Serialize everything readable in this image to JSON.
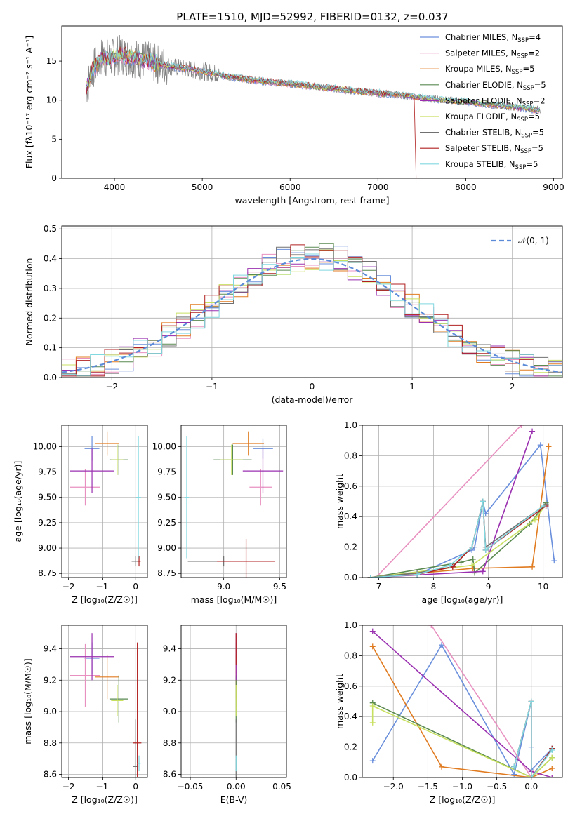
{
  "figure": {
    "title": "PLATE=1510, MJD=52992, FIBERID=0132, z=0.037"
  },
  "colors": {
    "series": [
      "#6a8fdc",
      "#e890c0",
      "#e07b20",
      "#5a8a50",
      "#9a30b0",
      "#c8e060",
      "#707070",
      "#b02020",
      "#80d8e0"
    ],
    "data_spectrum": "#808080",
    "normal_curve": "#5b8bd8",
    "grid": "#b0b0b0"
  },
  "series_names": [
    "Chabrier MILES",
    "Salpeter MILES",
    "Kroupa MILES",
    "Chabrier ELODIE",
    "Salpeter ELODIE",
    "Kroupa ELODIE",
    "Chabrier STELIB",
    "Salpeter STELIB",
    "Kroupa STELIB"
  ],
  "legend_nssp": [
    "4",
    "2",
    "5",
    "5",
    "2",
    "5",
    "5",
    "5",
    "5"
  ],
  "chart_data": [
    {
      "id": "spectrum",
      "type": "line",
      "title": "PLATE=1510, MJD=52992, FIBERID=0132, z=0.037",
      "xlabel": "wavelength [Angstrom, rest frame]",
      "ylabel": "Flux [fλ10⁻¹⁷ erg cm⁻² s⁻¹ A⁻¹]",
      "xlim": [
        3400,
        9100
      ],
      "ylim": [
        0,
        19.5
      ],
      "xticks": [
        4000,
        5000,
        6000,
        7000,
        8000,
        9000
      ],
      "yticks": [
        0,
        5,
        10,
        15
      ],
      "grid": false,
      "legend_position": "top-right",
      "continuum": {
        "wavelength": [
          3680,
          3750,
          3850,
          3950,
          4050,
          4150,
          4300,
          4500,
          4700,
          4900,
          5100,
          5300,
          5500,
          5700,
          5900,
          6100,
          6300,
          6500,
          6700,
          6900,
          7100,
          7300,
          7500,
          7700,
          7900,
          8100,
          8300,
          8500,
          8700,
          8850
        ],
        "flux": [
          11.5,
          13.8,
          15.5,
          15.3,
          15.8,
          15.6,
          15.2,
          14.6,
          14.2,
          13.9,
          13.5,
          13.0,
          12.7,
          12.4,
          12.2,
          12.0,
          11.7,
          11.5,
          11.2,
          11.0,
          10.8,
          10.6,
          10.3,
          10.1,
          9.9,
          9.7,
          9.4,
          9.2,
          8.9,
          8.7
        ]
      },
      "model_end_wavelength": [
        8850,
        8850,
        8850,
        8850,
        8850,
        8850,
        8850,
        7420,
        8850
      ]
    },
    {
      "id": "residual-histogram",
      "type": "histogram",
      "xlabel": "(data-model)/error",
      "ylabel": "Normed distribution",
      "xlim": [
        -2.5,
        2.5
      ],
      "ylim": [
        0,
        0.51
      ],
      "xticks": [
        -2,
        -1,
        0,
        1,
        2
      ],
      "yticks": [
        0.0,
        0.1,
        0.2,
        0.3,
        0.4,
        0.5
      ],
      "grid": true,
      "legend_position": "top-right",
      "reference_curve": {
        "name": "𝒩(0, 1)",
        "mean": 0,
        "sigma": 1
      }
    },
    {
      "id": "age-vs-z",
      "type": "scatter",
      "xlabel": "Z [log₁₀(Z/Z☉)]",
      "ylabel": "age  [log₁₀(age/yr)]",
      "xlim": [
        -2.2,
        0.35
      ],
      "ylim": [
        8.71,
        10.21
      ],
      "xticks": [
        -2,
        -1,
        0
      ],
      "yticks": [
        8.75,
        9.0,
        9.25,
        9.5,
        9.75,
        10.0
      ],
      "grid": true,
      "points": [
        {
          "x": -1.3,
          "y": 9.98,
          "ex": 0.22,
          "ey": 0.12
        },
        {
          "x": -1.5,
          "y": 9.6,
          "ex": 0.45,
          "ey": 0.18
        },
        {
          "x": -0.85,
          "y": 10.03,
          "ex": 0.35,
          "ey": 0.12
        },
        {
          "x": -0.5,
          "y": 9.87,
          "ex": 0.28,
          "ey": 0.15
        },
        {
          "x": -1.3,
          "y": 9.76,
          "ex": 0.65,
          "ey": 0.22
        },
        {
          "x": -0.55,
          "y": 9.87,
          "ex": 0.18,
          "ey": 0.15
        },
        {
          "x": 0.0,
          "y": 8.87,
          "ex": 0.12,
          "ey": 0.05
        },
        {
          "x": 0.1,
          "y": 8.87,
          "ex": 0.05,
          "ey": 0.05
        },
        {
          "x": 0.08,
          "y": 9.5,
          "ex": 0.08,
          "ey": 0.6
        }
      ]
    },
    {
      "id": "age-vs-mass",
      "type": "scatter",
      "xlabel": "mass [log₁₀(M/M☉)]",
      "ylabel": "",
      "xlim": [
        8.62,
        9.56
      ],
      "ylim": [
        8.71,
        10.21
      ],
      "xticks": [
        9.0,
        9.5
      ],
      "yticks": [
        8.75,
        9.0,
        9.25,
        9.5,
        9.75,
        10.0
      ],
      "grid": true,
      "points": [
        {
          "x": 9.35,
          "y": 9.98,
          "ex": 0.09,
          "ey": 0.1
        },
        {
          "x": 9.33,
          "y": 9.6,
          "ex": 0.1,
          "ey": 0.18
        },
        {
          "x": 9.22,
          "y": 10.03,
          "ex": 0.14,
          "ey": 0.12
        },
        {
          "x": 9.08,
          "y": 9.87,
          "ex": 0.17,
          "ey": 0.15
        },
        {
          "x": 9.35,
          "y": 9.76,
          "ex": 0.18,
          "ey": 0.22
        },
        {
          "x": 9.07,
          "y": 9.87,
          "ex": 0.1,
          "ey": 0.15
        },
        {
          "x": 9.0,
          "y": 8.87,
          "ex": 0.32,
          "ey": 0.05
        },
        {
          "x": 9.2,
          "y": 8.87,
          "ex": 0.26,
          "ey": 0.22
        },
        {
          "x": 8.67,
          "y": 9.5,
          "ex": 0.02,
          "ey": 0.6
        }
      ]
    },
    {
      "id": "weight-vs-age",
      "type": "line",
      "xlabel": "age  [log₁₀(age/yr)]",
      "ylabel": "mass weight",
      "xlim": [
        6.7,
        10.35
      ],
      "ylim": [
        0,
        1.0
      ],
      "xticks": [
        7,
        8,
        9,
        10
      ],
      "yticks": [
        0.0,
        0.2,
        0.4,
        0.6,
        0.8,
        1.0
      ],
      "grid": true,
      "series": [
        {
          "x": [
            6.85,
            7.7,
            8.7,
            8.75,
            8.9,
            8.95,
            9.95,
            10.2
          ],
          "y": [
            0.0,
            0.02,
            0.18,
            0.2,
            0.5,
            0.42,
            0.87,
            0.11
          ]
        },
        {
          "x": [
            6.95,
            9.6
          ],
          "y": [
            0.0,
            1.0
          ]
        },
        {
          "x": [
            6.85,
            8.72,
            9.8,
            10.1
          ],
          "y": [
            0.0,
            0.06,
            0.07,
            0.86
          ]
        },
        {
          "x": [
            6.85,
            8.5,
            8.72,
            8.75,
            9.75,
            10.05
          ],
          "y": [
            0.0,
            0.1,
            0.12,
            0.03,
            0.35,
            0.49
          ]
        },
        {
          "x": [
            6.85,
            8.9,
            9.8
          ],
          "y": [
            0.0,
            0.04,
            0.96
          ]
        },
        {
          "x": [
            6.85,
            8.7,
            9.85,
            10.05
          ],
          "y": [
            0.0,
            0.08,
            0.38,
            0.48
          ]
        },
        {
          "x": [
            6.85,
            7.7,
            8.35,
            8.7,
            8.9,
            8.95,
            10.05
          ],
          "y": [
            0.0,
            0.03,
            0.07,
            0.2,
            0.5,
            0.2,
            0.48
          ]
        },
        {
          "x": [
            6.85,
            7.7,
            8.35,
            8.7,
            8.9,
            8.95,
            10.05
          ],
          "y": [
            0.0,
            0.02,
            0.07,
            0.2,
            0.5,
            0.18,
            0.47
          ]
        },
        {
          "x": [
            6.85,
            7.7,
            8.3,
            8.7,
            8.9,
            8.95,
            10.0
          ],
          "y": [
            0.0,
            0.02,
            0.08,
            0.2,
            0.5,
            0.18,
            0.47
          ]
        }
      ]
    },
    {
      "id": "mass-vs-z",
      "type": "scatter",
      "xlabel": "Z [log₁₀(Z/Z☉)]",
      "ylabel": "mass [log₁₀(M/M☉)]",
      "xlim": [
        -2.2,
        0.35
      ],
      "ylim": [
        8.58,
        9.55
      ],
      "xticks": [
        -2,
        -1,
        0
      ],
      "yticks": [
        8.6,
        8.8,
        9.0,
        9.2,
        9.4
      ],
      "grid": true,
      "points": [
        {
          "x": -1.3,
          "y": 9.34,
          "ex": 0.22,
          "ey": 0.1
        },
        {
          "x": -1.5,
          "y": 9.23,
          "ex": 0.45,
          "ey": 0.2
        },
        {
          "x": -0.85,
          "y": 9.22,
          "ex": 0.35,
          "ey": 0.14
        },
        {
          "x": -0.5,
          "y": 9.08,
          "ex": 0.28,
          "ey": 0.15
        },
        {
          "x": -1.3,
          "y": 9.35,
          "ex": 0.65,
          "ey": 0.15
        },
        {
          "x": -0.55,
          "y": 9.07,
          "ex": 0.18,
          "ey": 0.1
        },
        {
          "x": 0.0,
          "y": 8.65,
          "ex": 0.08,
          "ey": 0.3
        },
        {
          "x": 0.05,
          "y": 8.8,
          "ex": 0.12,
          "ey": 0.64
        },
        {
          "x": 0.1,
          "y": 8.67,
          "ex": 0.05,
          "ey": 0.05
        }
      ]
    },
    {
      "id": "mass-vs-ebv",
      "type": "scatter",
      "xlabel": "E(B-V)",
      "ylabel": "",
      "xlim": [
        -0.06,
        0.055
      ],
      "ylim": [
        8.58,
        9.55
      ],
      "xticks": [
        -0.05,
        0.0,
        0.05
      ],
      "yticks": [
        8.6,
        8.8,
        9.0,
        9.2,
        9.4
      ],
      "grid": true,
      "points": [
        {
          "x": 0.0,
          "y": 9.34,
          "ex": 0.0,
          "ey": 0.1
        },
        {
          "x": 0.0,
          "y": 9.23,
          "ex": 0.0,
          "ey": 0.2
        },
        {
          "x": 0.0,
          "y": 9.22,
          "ex": 0.0,
          "ey": 0.14
        },
        {
          "x": 0.0,
          "y": 9.08,
          "ex": 0.0,
          "ey": 0.15
        },
        {
          "x": 0.0,
          "y": 9.35,
          "ex": 0.0,
          "ey": 0.15
        },
        {
          "x": 0.0,
          "y": 9.07,
          "ex": 0.0,
          "ey": 0.1
        },
        {
          "x": 0.0,
          "y": 8.65,
          "ex": 0.0,
          "ey": 0.3
        },
        {
          "x": 0.0,
          "y": 9.4,
          "ex": 0.0,
          "ey": 0.1
        },
        {
          "x": 0.0,
          "y": 8.67,
          "ex": 0.0,
          "ey": 0.05
        }
      ]
    },
    {
      "id": "weight-vs-z",
      "type": "line",
      "xlabel": "Z [log₁₀(Z/Z☉)]",
      "ylabel": "mass weight",
      "xlim": [
        -2.45,
        0.45
      ],
      "ylim": [
        0,
        1.0
      ],
      "xticks": [
        -2.0,
        -1.5,
        -1.0,
        -0.5,
        0.0
      ],
      "yticks": [
        0.0,
        0.2,
        0.4,
        0.6,
        0.8,
        1.0
      ],
      "grid": true,
      "series": [
        {
          "x": [
            -2.3,
            -1.3,
            -0.25,
            0.0,
            0.0,
            0.0,
            0.3
          ],
          "y": [
            0.11,
            0.87,
            0.02,
            0.5,
            0.2,
            0.05,
            0.19
          ]
        },
        {
          "x": [
            -1.45,
            0.0
          ],
          "y": [
            1.0,
            0.0
          ]
        },
        {
          "x": [
            -2.3,
            -1.3,
            0.0,
            0.3
          ],
          "y": [
            0.86,
            0.07,
            0.0,
            0.06
          ]
        },
        {
          "x": [
            -2.3,
            0.0,
            0.3
          ],
          "y": [
            0.49,
            0.0,
            0.13
          ]
        },
        {
          "x": [
            -2.3,
            0.0,
            0.3
          ],
          "y": [
            0.96,
            0.04,
            0.0
          ]
        },
        {
          "x": [
            -2.3,
            -2.3,
            0.0,
            0.3
          ],
          "y": [
            0.36,
            0.47,
            0.0,
            0.13
          ]
        },
        {
          "x": [
            -0.25,
            0.0,
            0.0,
            0.3
          ],
          "y": [
            0.07,
            0.5,
            0.0,
            0.19
          ]
        },
        {
          "x": [
            -0.25,
            0.0,
            0.0,
            0.3
          ],
          "y": [
            0.07,
            0.5,
            0.0,
            0.19
          ]
        },
        {
          "x": [
            -0.25,
            0.0,
            0.0,
            0.3
          ],
          "y": [
            0.07,
            0.5,
            0.0,
            0.18
          ]
        }
      ]
    }
  ]
}
